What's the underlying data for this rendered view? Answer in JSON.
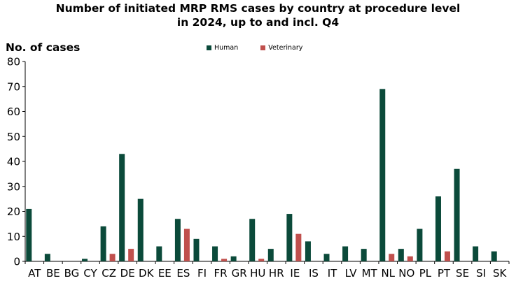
{
  "chart_data": {
    "type": "bar",
    "title": "Number of initiated MRP RMS cases by country at procedure level in 2024, up to and incl. Q4",
    "title_lines": [
      "Number of initiated MRP RMS cases by country at procedure level",
      "in 2024, up to and incl. Q4"
    ],
    "ylabel": "No. of cases",
    "xlabel": "",
    "ylim": [
      0,
      80
    ],
    "yticks": [
      "0",
      "10",
      "20",
      "30",
      "40",
      "50",
      "60",
      "70",
      "80"
    ],
    "grid": false,
    "legend_position": "top",
    "categories": [
      "AT",
      "BE",
      "BG",
      "CY",
      "CZ",
      "DE",
      "DK",
      "EE",
      "ES",
      "FI",
      "FR",
      "GR",
      "HU",
      "HR",
      "IE",
      "IS",
      "IT",
      "LV",
      "MT",
      "NL",
      "NO",
      "PL",
      "PT",
      "SE",
      "SI",
      "SK"
    ],
    "series": [
      {
        "name": "Human",
        "color": "#0b4a3a",
        "values": [
          21,
          3,
          0,
          1,
          14,
          43,
          25,
          6,
          17,
          9,
          6,
          2,
          17,
          5,
          19,
          8,
          3,
          6,
          5,
          69,
          5,
          13,
          26,
          37,
          6,
          4
        ]
      },
      {
        "name": "Veterinary",
        "color": "#c0504d",
        "values": [
          0,
          0,
          0,
          0,
          3,
          5,
          0,
          0,
          13,
          0,
          1,
          0,
          1,
          0,
          11,
          0,
          0,
          0,
          0,
          3,
          2,
          0,
          4,
          0,
          0,
          0
        ]
      }
    ]
  }
}
